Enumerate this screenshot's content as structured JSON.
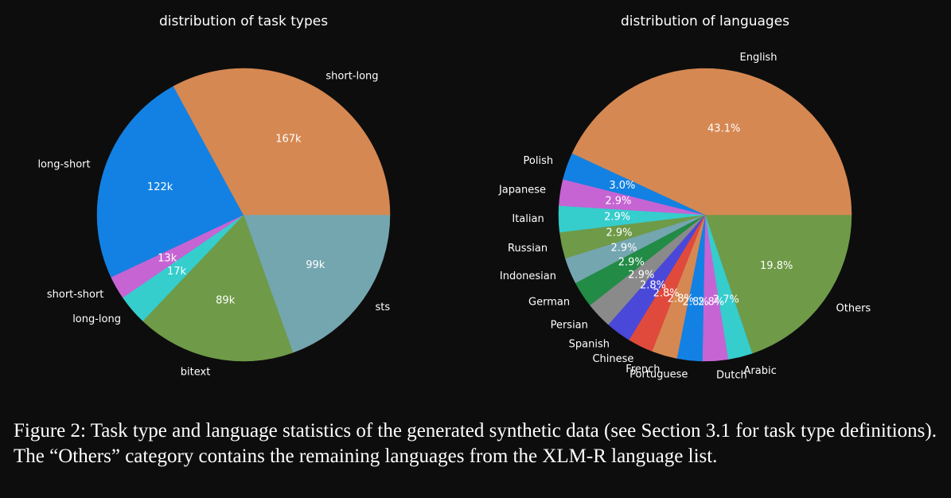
{
  "chart_data": [
    {
      "type": "pie",
      "title": "distribution of task types",
      "start_angle_deg": 0,
      "direction": "counterclockwise",
      "slices": [
        {
          "label": "short-long",
          "value": 167,
          "display": "167k",
          "color": "#d68852"
        },
        {
          "label": "long-short",
          "value": 122,
          "display": "122k",
          "color": "#1381e3"
        },
        {
          "label": "short-short",
          "value": 13,
          "display": "13k",
          "color": "#c664d4"
        },
        {
          "label": "long-long",
          "value": 17,
          "display": "17k",
          "color": "#36cdcd"
        },
        {
          "label": "bitext",
          "value": 89,
          "display": "89k",
          "color": "#6f9a48"
        },
        {
          "label": "sts",
          "value": 99,
          "display": "99k",
          "color": "#74a6b0"
        }
      ]
    },
    {
      "type": "pie",
      "title": "distribution of languages",
      "start_angle_deg": 0,
      "direction": "counterclockwise",
      "slices": [
        {
          "label": "English",
          "value": 43.1,
          "display": "43.1%",
          "color": "#d68852"
        },
        {
          "label": "Polish",
          "value": 3.0,
          "display": "3.0%",
          "color": "#1381e3"
        },
        {
          "label": "Japanese",
          "value": 2.9,
          "display": "2.9%",
          "color": "#c664d4"
        },
        {
          "label": "Italian",
          "value": 2.9,
          "display": "2.9%",
          "color": "#36cdcd"
        },
        {
          "label": "Russian",
          "value": 2.9,
          "display": "2.9%",
          "color": "#6f9a48"
        },
        {
          "label": "Indonesian",
          "value": 2.9,
          "display": "2.9%",
          "color": "#74a6b0"
        },
        {
          "label": "German",
          "value": 2.9,
          "display": "2.9%",
          "color": "#228b45"
        },
        {
          "label": "Persian",
          "value": 2.9,
          "display": "2.9%",
          "color": "#8a8a8a"
        },
        {
          "label": "Spanish",
          "value": 2.8,
          "display": "2.8%",
          "color": "#4a48d8"
        },
        {
          "label": "Chinese",
          "value": 2.8,
          "display": "2.8%",
          "color": "#df4a3c"
        },
        {
          "label": "French",
          "value": 2.8,
          "display": "2.8%",
          "color": "#d68852"
        },
        {
          "label": "Portuguese",
          "value": 2.8,
          "display": "2.8%",
          "color": "#1381e3"
        },
        {
          "label": "Dutch",
          "value": 2.8,
          "display": "2.8%",
          "color": "#c664d4"
        },
        {
          "label": "Arabic",
          "value": 2.7,
          "display": "2.7%",
          "color": "#36cdcd"
        },
        {
          "label": "Others",
          "value": 19.8,
          "display": "19.8%",
          "color": "#6f9a48"
        }
      ]
    }
  ],
  "caption": "Figure 2: Task type and language statistics of the generated synthetic data (see Section 3.1 for task type definitions). The “Others” category contains the remaining languages from the XLM-R language list."
}
